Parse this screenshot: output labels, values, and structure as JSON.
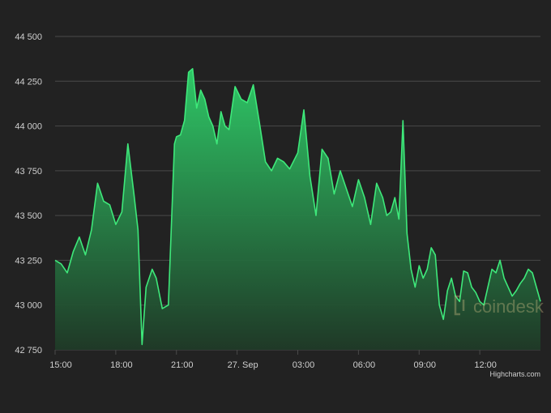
{
  "chart_data": {
    "type": "area",
    "title": "",
    "xlabel": "",
    "ylabel": "",
    "ylim": [
      42750,
      44500
    ],
    "y_ticks": [
      "42 750",
      "43 000",
      "43 250",
      "43 500",
      "43 750",
      "44 000",
      "44 250",
      "44 500"
    ],
    "y_tick_values": [
      42750,
      43000,
      43250,
      43500,
      43750,
      44000,
      44250,
      44500
    ],
    "x_ticks": [
      "15:00",
      "18:00",
      "21:00",
      "27. Sep",
      "03:00",
      "06:00",
      "09:00",
      "12:00"
    ],
    "x_tick_hours": [
      0,
      3,
      6,
      9,
      12,
      15,
      18,
      21
    ],
    "grid": true,
    "legend": "none",
    "colors": {
      "line": "#3ee87a",
      "fill_top": "#2fd06a",
      "fill_bottom": "#1f3a27",
      "background": "#222222",
      "grid": "#4a4a4a"
    },
    "series": [
      {
        "x_hours": [
          0,
          0.3,
          0.6,
          0.9,
          1.2,
          1.5,
          1.8,
          2.1,
          2.4,
          2.7,
          3.0,
          3.3,
          3.6,
          3.9,
          4.1,
          4.3,
          4.5,
          4.8,
          5.0,
          5.3,
          5.6,
          5.9,
          6.0,
          6.2,
          6.4,
          6.6,
          6.8,
          7.0,
          7.2,
          7.4,
          7.6,
          7.8,
          8.0,
          8.2,
          8.4,
          8.6,
          8.9,
          9.2,
          9.5,
          9.8,
          10.1,
          10.4,
          10.7,
          11.0,
          11.3,
          11.6,
          12.0,
          12.3,
          12.6,
          12.9,
          13.2,
          13.5,
          13.8,
          14.1,
          14.4,
          14.7,
          15.0,
          15.3,
          15.6,
          15.9,
          16.2,
          16.4,
          16.6,
          16.8,
          17.0,
          17.2,
          17.4,
          17.6,
          17.8,
          18.0,
          18.2,
          18.4,
          18.6,
          18.8,
          19.0,
          19.2,
          19.4,
          19.6,
          19.8,
          20.0,
          20.2,
          20.4,
          20.6,
          20.8,
          21.0,
          21.2,
          21.4,
          21.6,
          21.8,
          22.0,
          22.2,
          22.4,
          22.6,
          22.8,
          23.0,
          23.2,
          23.4,
          23.6,
          23.8,
          24.0
        ],
        "values": [
          43250,
          43230,
          43180,
          43300,
          43380,
          43280,
          43420,
          43680,
          43580,
          43560,
          43450,
          43520,
          43900,
          43620,
          43420,
          42780,
          43100,
          43200,
          43150,
          42980,
          43000,
          43900,
          43940,
          43950,
          44030,
          44300,
          44320,
          44100,
          44200,
          44150,
          44050,
          44000,
          43900,
          44080,
          44000,
          43980,
          44220,
          44150,
          44130,
          44230,
          44020,
          43800,
          43750,
          43820,
          43800,
          43760,
          43850,
          44090,
          43720,
          43500,
          43870,
          43820,
          43620,
          43750,
          43650,
          43550,
          43700,
          43600,
          43450,
          43680,
          43600,
          43500,
          43520,
          43600,
          43480,
          44030,
          43400,
          43200,
          43100,
          43220,
          43150,
          43200,
          43320,
          43280,
          43000,
          42920,
          43080,
          43150,
          43050,
          43020,
          43190,
          43180,
          43100,
          43070,
          43020,
          43000,
          43100,
          43200,
          43180,
          43250,
          43150,
          43100,
          43050,
          43080,
          43120,
          43150,
          43200,
          43180,
          43100,
          43020
        ]
      }
    ],
    "credit": "Highcharts.com",
    "watermark": "coindesk"
  }
}
